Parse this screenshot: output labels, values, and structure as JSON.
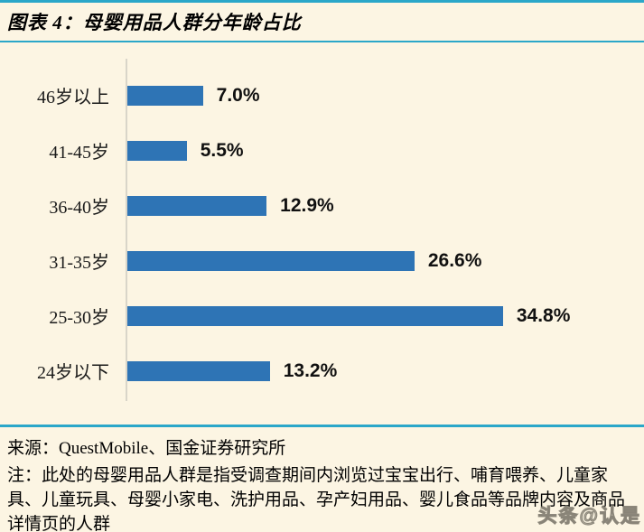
{
  "page": {
    "background_color": "#FCF5E3",
    "accent_color": "#2BA7C9"
  },
  "header": {
    "title": "图表 4：母婴用品人群分年龄占比"
  },
  "chart_data": {
    "type": "bar",
    "orientation": "horizontal",
    "title": "母婴用品人群分年龄占比",
    "categories": [
      "46岁以上",
      "41-45岁",
      "36-40岁",
      "31-35岁",
      "25-30岁",
      "24岁以下"
    ],
    "values": [
      7.0,
      5.5,
      12.9,
      26.6,
      34.8,
      13.2
    ],
    "value_labels": [
      "7.0%",
      "5.5%",
      "12.9%",
      "26.6%",
      "34.8%",
      "13.2%"
    ],
    "unit": "%",
    "xlim": [
      0,
      40
    ],
    "grid": false,
    "legend": false,
    "bar_color": "#2E74B5",
    "axis_line_color": "#D9D5C9"
  },
  "footer": {
    "source": "来源：QuestMobile、国金证券研究所",
    "note": "注：此处的母婴用品人群是指受调查期间内浏览过宝宝出行、哺育喂养、儿童家具、儿童玩具、母婴小家电、洗护用品、孕产妇用品、婴儿食品等品牌内容及商品详情页的人群",
    "watermark": "头条@认是"
  }
}
